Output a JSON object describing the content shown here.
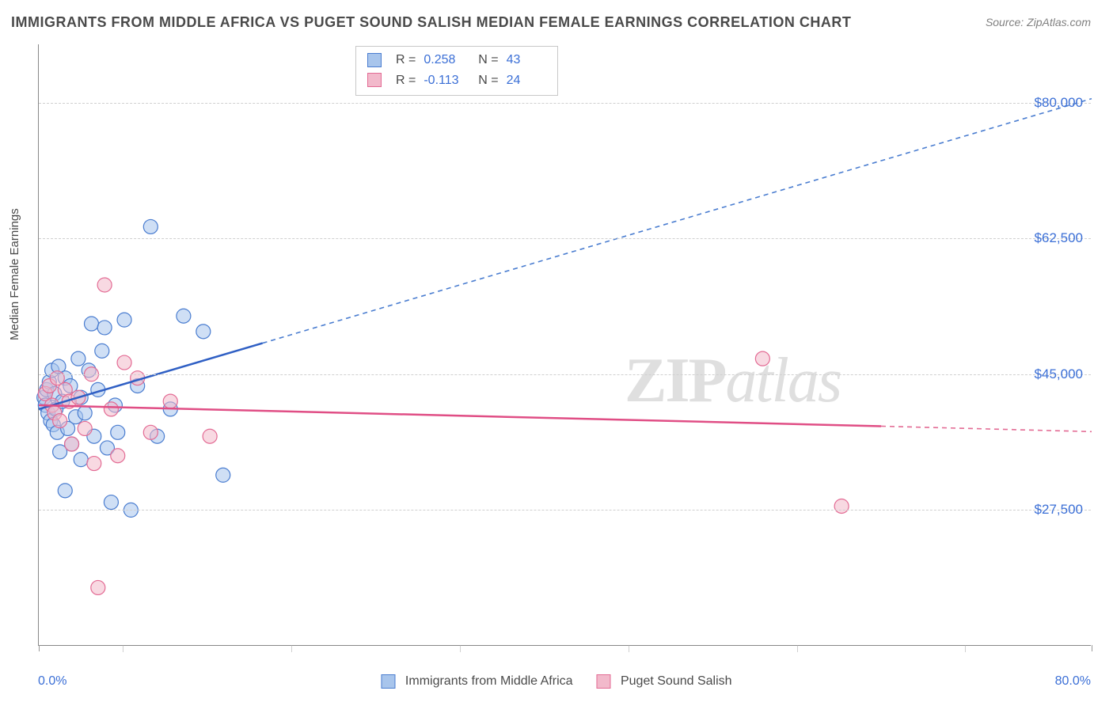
{
  "title": "IMMIGRANTS FROM MIDDLE AFRICA VS PUGET SOUND SALISH MEDIAN FEMALE EARNINGS CORRELATION CHART",
  "source_label": "Source: ZipAtlas.com",
  "yaxis_title": "Median Female Earnings",
  "watermark": {
    "part1": "ZIP",
    "part2": "atlas"
  },
  "chart": {
    "type": "scatter-correlation",
    "background_color": "#ffffff",
    "grid_color": "#d0d0d0",
    "axis_color": "#888888",
    "text_color": "#4a4a4a",
    "tick_label_color": "#3b6fd6",
    "title_fontsize": 18,
    "label_fontsize": 15,
    "tick_fontsize": 17,
    "marker_radius": 9,
    "marker_opacity": 0.55,
    "x": {
      "min": 0.0,
      "max": 80.0,
      "min_label": "0.0%",
      "max_label": "80.0%",
      "tick_positions_pct": [
        0,
        8,
        24,
        40,
        56,
        72,
        88,
        100
      ]
    },
    "y": {
      "min": 10000,
      "max": 87500,
      "ticks": [
        27500,
        45000,
        62500,
        80000
      ],
      "tick_labels": [
        "$27,500",
        "$45,000",
        "$62,500",
        "$80,000"
      ]
    },
    "series": [
      {
        "name": "Immigrants from Middle Africa",
        "fill_color": "#a8c5ec",
        "stroke_color": "#4a7dd0",
        "line_solid_color": "#2f5fc4",
        "line_dash_color": "#4a7dd0",
        "R": "0.258",
        "N": "43",
        "trend": {
          "start": {
            "x": 0.0,
            "y": 40500
          },
          "solid_end": {
            "x": 17.0,
            "y": 49000
          },
          "dash_end": {
            "x": 80.0,
            "y": 80500
          }
        },
        "points": [
          {
            "x": 0.4,
            "y": 42000
          },
          {
            "x": 0.5,
            "y": 41000
          },
          {
            "x": 0.6,
            "y": 43000
          },
          {
            "x": 0.7,
            "y": 40000
          },
          {
            "x": 0.8,
            "y": 44000
          },
          {
            "x": 0.9,
            "y": 39000
          },
          {
            "x": 1.0,
            "y": 45500
          },
          {
            "x": 1.1,
            "y": 38500
          },
          {
            "x": 1.2,
            "y": 42500
          },
          {
            "x": 1.3,
            "y": 40500
          },
          {
            "x": 1.4,
            "y": 37500
          },
          {
            "x": 1.5,
            "y": 46000
          },
          {
            "x": 1.6,
            "y": 35000
          },
          {
            "x": 1.8,
            "y": 41500
          },
          {
            "x": 2.0,
            "y": 44500
          },
          {
            "x": 2.0,
            "y": 30000
          },
          {
            "x": 2.2,
            "y": 38000
          },
          {
            "x": 2.4,
            "y": 43500
          },
          {
            "x": 2.5,
            "y": 36000
          },
          {
            "x": 2.8,
            "y": 39500
          },
          {
            "x": 3.0,
            "y": 47000
          },
          {
            "x": 3.2,
            "y": 34000
          },
          {
            "x": 3.2,
            "y": 42000
          },
          {
            "x": 3.5,
            "y": 40000
          },
          {
            "x": 3.8,
            "y": 45500
          },
          {
            "x": 4.0,
            "y": 51500
          },
          {
            "x": 4.2,
            "y": 37000
          },
          {
            "x": 4.5,
            "y": 43000
          },
          {
            "x": 5.0,
            "y": 51000
          },
          {
            "x": 5.2,
            "y": 35500
          },
          {
            "x": 5.5,
            "y": 28500
          },
          {
            "x": 5.8,
            "y": 41000
          },
          {
            "x": 6.0,
            "y": 37500
          },
          {
            "x": 6.5,
            "y": 52000
          },
          {
            "x": 7.0,
            "y": 27500
          },
          {
            "x": 7.5,
            "y": 43500
          },
          {
            "x": 8.5,
            "y": 64000
          },
          {
            "x": 9.0,
            "y": 37000
          },
          {
            "x": 11.0,
            "y": 52500
          },
          {
            "x": 12.5,
            "y": 50500
          },
          {
            "x": 14.0,
            "y": 32000
          },
          {
            "x": 10.0,
            "y": 40500
          },
          {
            "x": 4.8,
            "y": 48000
          }
        ]
      },
      {
        "name": "Puget Sound Salish",
        "fill_color": "#f2b9cb",
        "stroke_color": "#e36b94",
        "line_solid_color": "#e04e85",
        "line_dash_color": "#e36b94",
        "R": "-0.113",
        "N": "24",
        "trend": {
          "start": {
            "x": 0.0,
            "y": 41000
          },
          "solid_end": {
            "x": 64.0,
            "y": 38300
          },
          "dash_end": {
            "x": 80.0,
            "y": 37600
          }
        },
        "points": [
          {
            "x": 0.5,
            "y": 42500
          },
          {
            "x": 0.8,
            "y": 43500
          },
          {
            "x": 1.0,
            "y": 41000
          },
          {
            "x": 1.2,
            "y": 40000
          },
          {
            "x": 1.4,
            "y": 44500
          },
          {
            "x": 1.6,
            "y": 39000
          },
          {
            "x": 2.0,
            "y": 43000
          },
          {
            "x": 2.3,
            "y": 41500
          },
          {
            "x": 2.5,
            "y": 36000
          },
          {
            "x": 3.0,
            "y": 42000
          },
          {
            "x": 3.5,
            "y": 38000
          },
          {
            "x": 4.0,
            "y": 45000
          },
          {
            "x": 4.2,
            "y": 33500
          },
          {
            "x": 4.5,
            "y": 17500
          },
          {
            "x": 5.0,
            "y": 56500
          },
          {
            "x": 5.5,
            "y": 40500
          },
          {
            "x": 6.5,
            "y": 46500
          },
          {
            "x": 7.5,
            "y": 44500
          },
          {
            "x": 8.5,
            "y": 37500
          },
          {
            "x": 10.0,
            "y": 41500
          },
          {
            "x": 13.0,
            "y": 37000
          },
          {
            "x": 55.0,
            "y": 47000
          },
          {
            "x": 61.0,
            "y": 28000
          },
          {
            "x": 6.0,
            "y": 34500
          }
        ]
      }
    ]
  },
  "legend": {
    "series1_label": "Immigrants from Middle Africa",
    "series2_label": "Puget Sound Salish"
  }
}
